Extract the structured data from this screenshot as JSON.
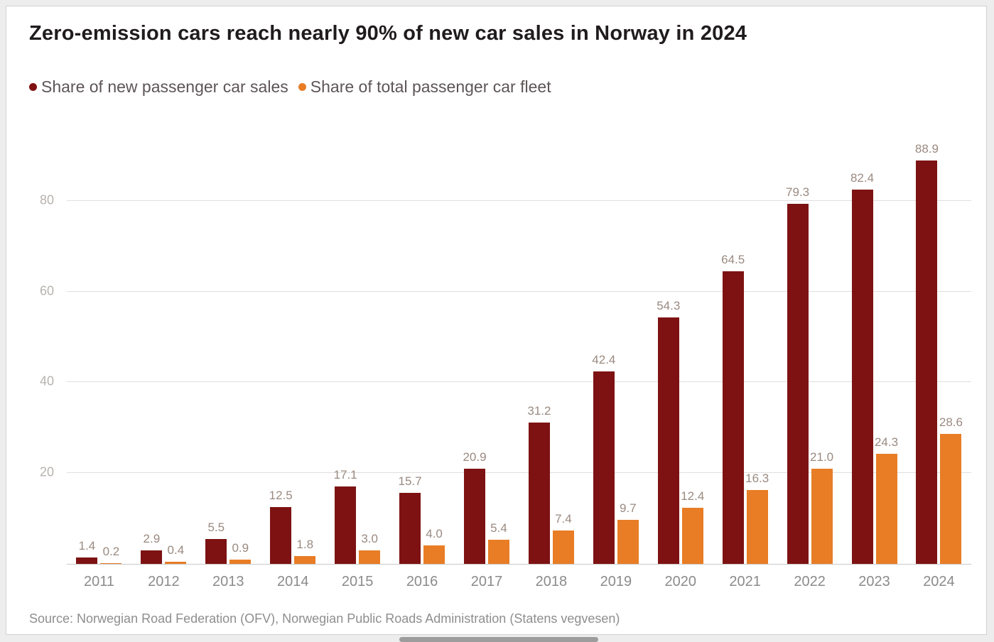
{
  "title": "Zero-emission cars reach nearly 90% of new car sales in Norway in 2024",
  "legend": [
    {
      "label": "Share of new passenger car sales",
      "color": "#7e1212"
    },
    {
      "label": "Share of total passenger car fleet",
      "color": "#e87d25"
    }
  ],
  "source": "Source: Norwegian Road Federation (OFV), Norwegian Public Roads Administration (Statens vegvesen)",
  "chart_data": {
    "type": "bar",
    "title": "Zero-emission cars reach nearly 90% of new car sales in Norway in 2024",
    "categories": [
      "2011",
      "2012",
      "2013",
      "2014",
      "2015",
      "2016",
      "2017",
      "2018",
      "2019",
      "2020",
      "2021",
      "2022",
      "2023",
      "2024"
    ],
    "series": [
      {
        "name": "Share of new passenger car sales",
        "color": "#7e1212",
        "values": [
          1.4,
          2.9,
          5.5,
          12.5,
          17.1,
          15.7,
          20.9,
          31.2,
          42.4,
          54.3,
          64.5,
          79.3,
          82.4,
          88.9
        ]
      },
      {
        "name": "Share of total passenger car fleet",
        "color": "#e87d25",
        "values": [
          0.2,
          0.4,
          0.9,
          1.8,
          3.0,
          4.0,
          5.4,
          7.4,
          9.7,
          12.4,
          16.3,
          21.0,
          24.3,
          28.6
        ]
      }
    ],
    "xlabel": "",
    "ylabel": "",
    "ylim": [
      0,
      97
    ],
    "yticks": [
      20,
      40,
      60,
      80
    ],
    "grid": true,
    "legend_position": "top-left",
    "value_labels": true
  }
}
